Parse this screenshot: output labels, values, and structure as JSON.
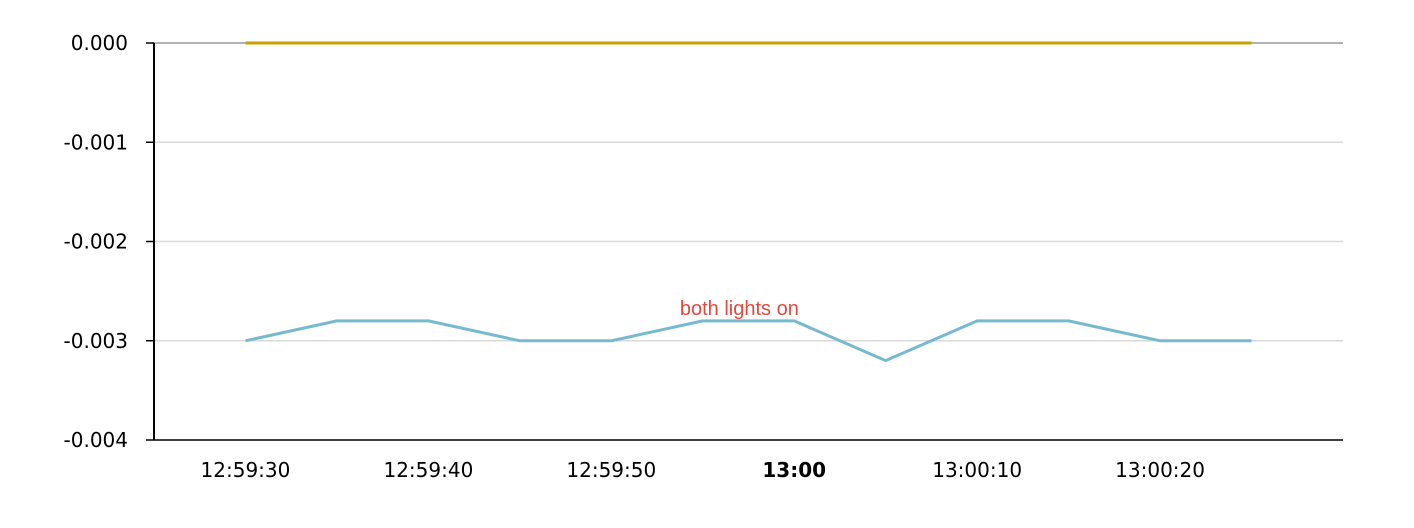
{
  "chart_data": {
    "type": "line",
    "title": "",
    "xlabel": "",
    "ylabel": "",
    "x": [
      "12:59:30",
      "12:59:35",
      "12:59:40",
      "12:59:45",
      "12:59:50",
      "12:59:55",
      "13:00:00",
      "13:00:05",
      "13:00:10",
      "13:00:15",
      "13:00:20",
      "13:00:25"
    ],
    "x_ticks": [
      {
        "value": "12:59:30",
        "label": "12:59:30",
        "bold": false
      },
      {
        "value": "12:59:40",
        "label": "12:59:40",
        "bold": false
      },
      {
        "value": "12:59:50",
        "label": "12:59:50",
        "bold": false
      },
      {
        "value": "13:00:00",
        "label": "13:00",
        "bold": true
      },
      {
        "value": "13:00:10",
        "label": "13:00:10",
        "bold": false
      },
      {
        "value": "13:00:20",
        "label": "13:00:20",
        "bold": false
      }
    ],
    "y_ticks": [
      {
        "value": 0.0,
        "label": "0.000"
      },
      {
        "value": -0.001,
        "label": "-0.001"
      },
      {
        "value": -0.002,
        "label": "-0.002"
      },
      {
        "value": -0.003,
        "label": "-0.003"
      },
      {
        "value": -0.004,
        "label": "-0.004"
      }
    ],
    "ylim": [
      -0.004,
      0.0
    ],
    "xlim": [
      "12:59:25",
      "13:00:30"
    ],
    "grid": true,
    "legend": "none",
    "series": [
      {
        "color": "#c9a100",
        "values": [
          0,
          0,
          0,
          0,
          0,
          0,
          0,
          0,
          0,
          0,
          0,
          0
        ]
      },
      {
        "color": "#77bad0",
        "values": [
          -0.003,
          -0.0028,
          -0.0028,
          -0.003,
          -0.003,
          -0.0028,
          -0.0028,
          -0.0032,
          -0.0028,
          -0.0028,
          -0.003,
          -0.003
        ]
      }
    ],
    "annotations": [
      {
        "text": "both lights on",
        "x": "12:59:57",
        "y": -0.00274,
        "color": "#e04a3f"
      }
    ],
    "colors": {
      "axis": "#000000",
      "grid": "#d9d9d9",
      "top_border": "#999999"
    }
  }
}
